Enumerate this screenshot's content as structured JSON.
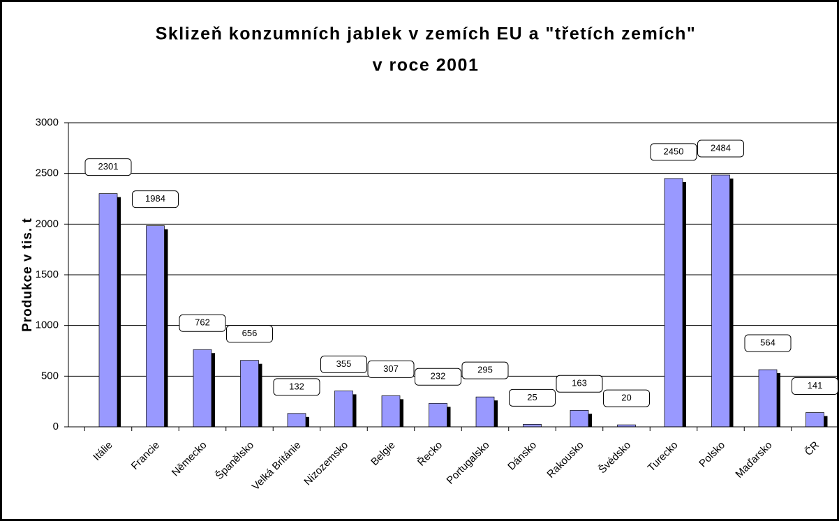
{
  "chart_data": {
    "type": "bar",
    "title": [
      "Sklizeň konzumních jablek v zemích EU a \"třetích zemích\"",
      "v roce 2001"
    ],
    "y_label": "Produkce v tis. t",
    "categories": [
      "Itálie",
      "Francie",
      "Německo",
      "Španělsko",
      "Velká Británie",
      "Nizozemsko",
      "Belgie",
      "Řecko",
      "Portugalsko",
      "Dánsko",
      "Rakousko",
      "Švédsko",
      "Turecko",
      "Polsko",
      "Maďarsko",
      "ČR"
    ],
    "values": [
      2301,
      1984,
      762,
      656,
      132,
      355,
      307,
      232,
      295,
      25,
      163,
      20,
      2450,
      2484,
      564,
      141
    ],
    "color": "#9999ff",
    "ylim": [
      0,
      3000
    ],
    "yticks": [
      0,
      500,
      1000,
      1500,
      2000,
      2500,
      3000
    ],
    "grid": true
  }
}
